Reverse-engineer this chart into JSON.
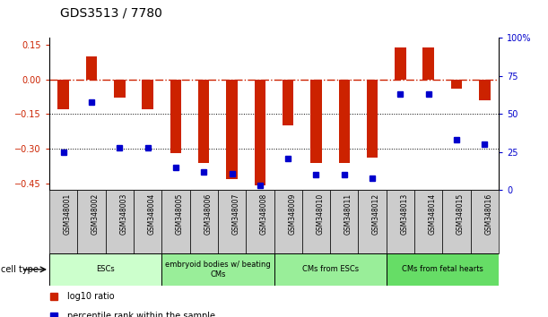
{
  "title": "GDS3513 / 7780",
  "samples": [
    "GSM348001",
    "GSM348002",
    "GSM348003",
    "GSM348004",
    "GSM348005",
    "GSM348006",
    "GSM348007",
    "GSM348008",
    "GSM348009",
    "GSM348010",
    "GSM348011",
    "GSM348012",
    "GSM348013",
    "GSM348014",
    "GSM348015",
    "GSM348016"
  ],
  "log10_ratio": [
    -0.13,
    0.1,
    -0.08,
    -0.13,
    -0.32,
    -0.36,
    -0.43,
    -0.46,
    -0.2,
    -0.36,
    -0.36,
    -0.34,
    0.14,
    0.14,
    -0.04,
    -0.09
  ],
  "percentile_rank": [
    25,
    58,
    28,
    28,
    15,
    12,
    11,
    3,
    21,
    10,
    10,
    8,
    63,
    63,
    33,
    30
  ],
  "bar_color": "#cc2200",
  "dot_color": "#0000cc",
  "zero_line_color": "#cc2200",
  "dotted_line_color": "#000000",
  "ylim_left": [
    -0.48,
    0.18
  ],
  "ylim_right": [
    0,
    100
  ],
  "yticks_left": [
    0.15,
    0.0,
    -0.15,
    -0.3,
    -0.45
  ],
  "yticks_right": [
    100,
    75,
    50,
    25,
    0
  ],
  "cell_type_groups": [
    {
      "label": "ESCs",
      "start": 0,
      "end": 3,
      "color": "#ccffcc"
    },
    {
      "label": "embryoid bodies w/ beating\nCMs",
      "start": 4,
      "end": 7,
      "color": "#99ee99"
    },
    {
      "label": "CMs from ESCs",
      "start": 8,
      "end": 11,
      "color": "#99ee99"
    },
    {
      "label": "CMs from fetal hearts",
      "start": 12,
      "end": 15,
      "color": "#66dd66"
    }
  ],
  "group_colors": [
    "#ccffcc",
    "#99ee99",
    "#99ee99",
    "#66dd66"
  ],
  "legend_items": [
    {
      "label": "log10 ratio",
      "color": "#cc2200"
    },
    {
      "label": "percentile rank within the sample",
      "color": "#0000cc"
    }
  ],
  "cell_type_label": "cell type",
  "sample_box_color": "#cccccc",
  "bar_width": 0.4
}
